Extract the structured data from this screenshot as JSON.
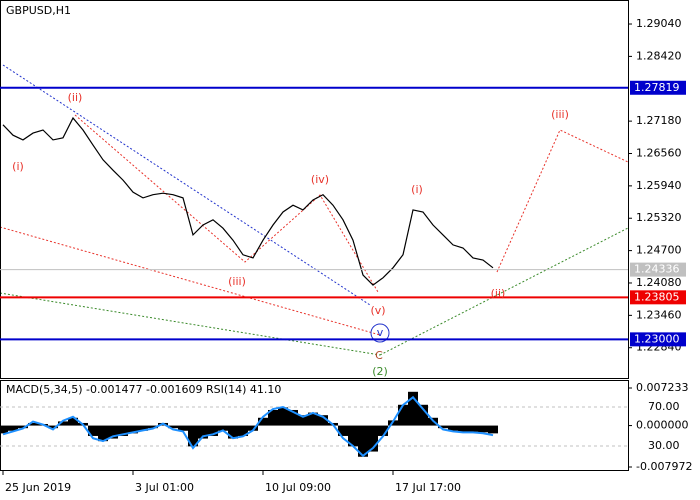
{
  "chart_data": [
    {
      "type": "line",
      "title": "GBPUSD,H1",
      "color": "#000000",
      "x": [
        0,
        1,
        2,
        3,
        4,
        5,
        6,
        7,
        8,
        9,
        10,
        11,
        12,
        13,
        14,
        15,
        16,
        17,
        18,
        19,
        20,
        21,
        22,
        23,
        24,
        25,
        26,
        27,
        28,
        29,
        30,
        31,
        32,
        33,
        34,
        35,
        36,
        37,
        38,
        39,
        40,
        41,
        42,
        43,
        44,
        45,
        46,
        47,
        48,
        49
      ],
      "values": [
        1.2711,
        1.2691,
        1.2682,
        1.2695,
        1.2701,
        1.2682,
        1.2686,
        1.2724,
        1.2701,
        1.2672,
        1.2644,
        1.2624,
        1.2605,
        1.2582,
        1.2571,
        1.2577,
        1.258,
        1.2577,
        1.2571,
        1.25,
        1.2519,
        1.2529,
        1.2513,
        1.249,
        1.2462,
        1.2456,
        1.249,
        1.2519,
        1.2544,
        1.2557,
        1.2548,
        1.2567,
        1.2577,
        1.2557,
        1.2529,
        1.249,
        1.2423,
        1.2404,
        1.2418,
        1.2437,
        1.2462,
        1.2548,
        1.2544,
        1.2519,
        1.25,
        1.2481,
        1.2475,
        1.2456,
        1.2452,
        1.2437
      ],
      "xlim": [
        -0.3,
        62.5
      ],
      "xticks": [
        {
          "value": 0,
          "label": "25 Jun 2019"
        },
        {
          "value": 13,
          "label": "3 Jul 01:00"
        },
        {
          "value": 26,
          "label": "10 Jul 09:00"
        },
        {
          "value": 39,
          "label": "17 Jul 17:00"
        }
      ],
      "ylim": [
        1.2226,
        1.295
      ],
      "yticks": [
        {
          "value": 1.2904,
          "label": "1.29040"
        },
        {
          "value": 1.2842,
          "label": "1.28420"
        },
        {
          "value": 1.2718,
          "label": "1.27180"
        },
        {
          "value": 1.2656,
          "label": "1.26560"
        },
        {
          "value": 1.2594,
          "label": "1.25940"
        },
        {
          "value": 1.2532,
          "label": "1.25320"
        },
        {
          "value": 1.247,
          "label": "1.24700"
        },
        {
          "value": 1.2408,
          "label": "1.24080"
        },
        {
          "value": 1.2346,
          "label": "1.23460"
        },
        {
          "value": 1.2284,
          "label": "1.22840"
        }
      ],
      "levels": [
        {
          "value": 1.27819,
          "color": "#0000cc"
        },
        {
          "value": 1.23805,
          "color": "#ee0000"
        },
        {
          "value": 1.23,
          "label": "1.23000",
          "color": "#0000cc"
        }
      ],
      "last_price": 1.24336,
      "annotations": [
        {
          "text": "(i)",
          "color": "#e8322a"
        },
        {
          "text": "(ii)",
          "color": "#e8322a"
        },
        {
          "text": "(iii)",
          "color": "#e8322a"
        },
        {
          "text": "(iv)",
          "color": "#e8322a"
        },
        {
          "text": "(v)",
          "color": "#e8322a"
        },
        {
          "text": "v",
          "color": "#2233cc"
        },
        {
          "text": "C",
          "color": "#b04a2a"
        },
        {
          "text": "(2)",
          "color": "#3a8a2a"
        },
        {
          "text": "(i)",
          "color": "#e8322a"
        },
        {
          "text": "(ii)",
          "color": "#e8322a"
        },
        {
          "text": "(iii)",
          "color": "#e8322a"
        }
      ]
    },
    {
      "type": "bar",
      "title": "MACD(5,34,5) -0.001477 -0.001609 RSI(14) 41.10",
      "ylim": [
        -0.00855,
        0.00877
      ],
      "yticks": [
        0.007233,
        {
          "value": 0,
          "label": "0.000000"
        },
        -0.007972
      ],
      "y2lim": [
        5.4,
        97.7
      ],
      "y2ticks": [
        {
          "value": 70,
          "label": "70.00"
        },
        {
          "value": 30,
          "label": "30.00"
        }
      ],
      "series": [
        {
          "type": "bar",
          "color": "#000000",
          "values": [
            -0.0015,
            -0.001,
            -0.0005,
            0.0005,
            0.0003,
            -0.0005,
            0.0008,
            0.0015,
            0.0005,
            -0.002,
            -0.003,
            -0.0025,
            -0.002,
            -0.0015,
            -0.001,
            -0.0005,
            0.0005,
            -0.0005,
            -0.001,
            -0.004,
            -0.0025,
            -0.002,
            -0.001,
            -0.0025,
            -0.002,
            -0.001,
            0.0015,
            0.003,
            0.0035,
            0.003,
            0.002,
            0.0025,
            0.002,
            0.0005,
            -0.002,
            -0.004,
            -0.006,
            -0.005,
            -0.002,
            0.001,
            0.004,
            0.0065,
            0.004,
            0.0015,
            -0.0005,
            -0.001,
            -0.0012,
            -0.0012,
            -0.0013,
            -0.0015
          ]
        },
        {
          "type": "line",
          "axis": "y2",
          "color": "#1e90ff",
          "values": [
            42,
            45,
            48,
            55,
            52,
            47,
            56,
            60,
            52,
            38,
            35,
            40,
            42,
            44,
            46,
            48,
            53,
            47,
            45,
            28,
            40,
            42,
            46,
            38,
            40,
            46,
            60,
            68,
            70,
            65,
            60,
            64,
            60,
            52,
            38,
            30,
            20,
            28,
            40,
            55,
            72,
            80,
            68,
            56,
            47,
            45,
            44,
            44,
            43,
            41.1
          ]
        }
      ]
    }
  ]
}
